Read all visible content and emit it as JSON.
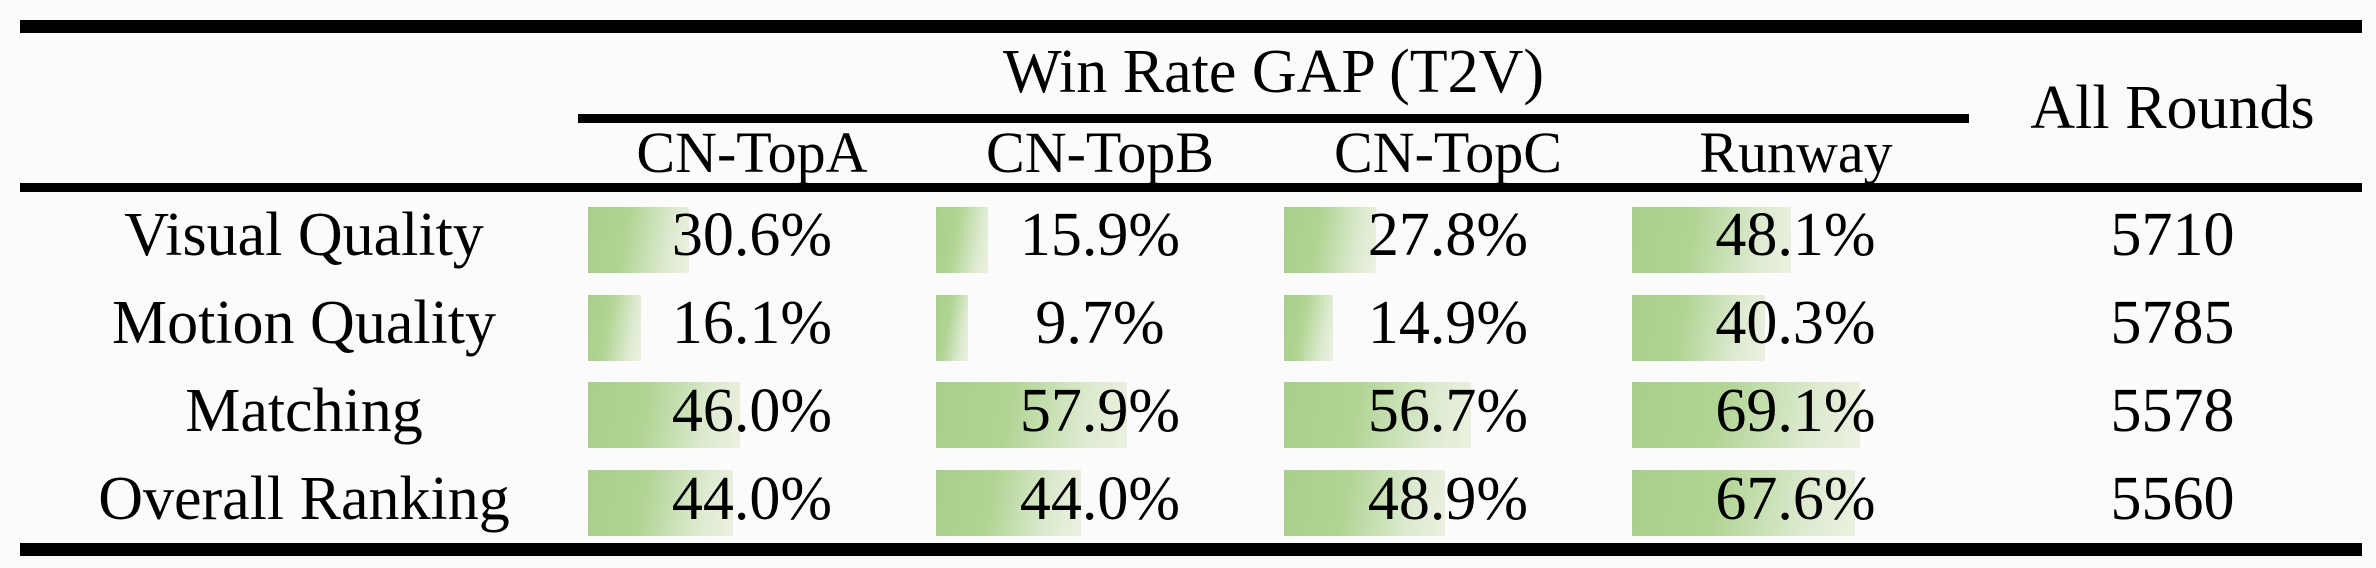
{
  "table": {
    "group_header": "Win Rate GAP (T2V)",
    "all_rounds_header": "All Rounds",
    "model_columns": [
      "CN-TopA",
      "CN-TopB",
      "CN-TopC",
      "Runway"
    ],
    "rows": [
      {
        "label": "Visual Quality",
        "cells": [
          {
            "pct": 30.6,
            "label": "30.6%"
          },
          {
            "pct": 15.9,
            "label": "15.9%"
          },
          {
            "pct": 27.8,
            "label": "27.8%"
          },
          {
            "pct": 48.1,
            "label": "48.1%"
          }
        ],
        "all_rounds": "5710"
      },
      {
        "label": "Motion Quality",
        "cells": [
          {
            "pct": 16.1,
            "label": "16.1%"
          },
          {
            "pct": 9.7,
            "label": "9.7%"
          },
          {
            "pct": 14.9,
            "label": "14.9%"
          },
          {
            "pct": 40.3,
            "label": "40.3%"
          }
        ],
        "all_rounds": "5785"
      },
      {
        "label": "Matching",
        "cells": [
          {
            "pct": 46.0,
            "label": "46.0%"
          },
          {
            "pct": 57.9,
            "label": "57.9%"
          },
          {
            "pct": 56.7,
            "label": "56.7%"
          },
          {
            "pct": 69.1,
            "label": "69.1%"
          }
        ],
        "all_rounds": "5578"
      },
      {
        "label": "Overall Ranking",
        "cells": [
          {
            "pct": 44.0,
            "label": "44.0%"
          },
          {
            "pct": 44.0,
            "label": "44.0%"
          },
          {
            "pct": 48.9,
            "label": "48.9%"
          },
          {
            "pct": 67.6,
            "label": "67.6%"
          }
        ],
        "all_rounds": "5560"
      }
    ],
    "colors": {
      "bar_green_start": "#a8cf8a",
      "bar_green_end": "#ecf1e1",
      "rule_color": "#000000",
      "background": "#fbfbfb"
    }
  },
  "chart_data": {
    "type": "table",
    "title": "Win Rate GAP (T2V)",
    "row_categories": [
      "Visual Quality",
      "Motion Quality",
      "Matching",
      "Overall Ranking"
    ],
    "columns": [
      "CN-TopA",
      "CN-TopB",
      "CN-TopC",
      "Runway",
      "All Rounds"
    ],
    "series": [
      {
        "name": "CN-TopA",
        "unit": "%",
        "values": [
          30.6,
          16.1,
          46.0,
          44.0
        ]
      },
      {
        "name": "CN-TopB",
        "unit": "%",
        "values": [
          15.9,
          9.7,
          57.9,
          44.0
        ]
      },
      {
        "name": "CN-TopC",
        "unit": "%",
        "values": [
          27.8,
          14.9,
          56.7,
          48.9
        ]
      },
      {
        "name": "Runway",
        "unit": "%",
        "values": [
          48.1,
          40.3,
          69.1,
          67.6
        ]
      },
      {
        "name": "All Rounds",
        "unit": "rounds",
        "values": [
          5710,
          5785,
          5578,
          5560
        ]
      }
    ],
    "layout_hints": {
      "in_cell_bars": true,
      "bar_range_pct": [
        0,
        100
      ],
      "bar_fill": "green gradient fading left to right"
    }
  }
}
